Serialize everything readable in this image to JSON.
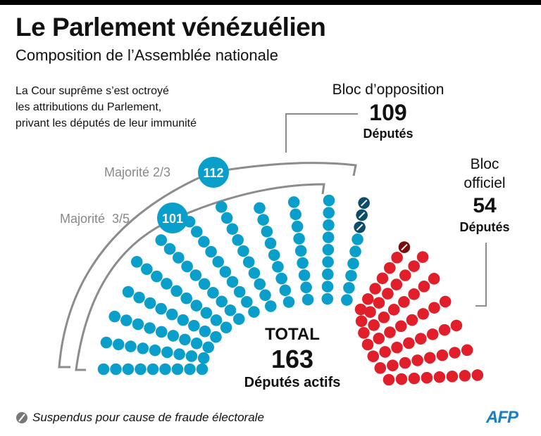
{
  "header": {
    "title": "Le Parlement vénézuélien",
    "subtitle": "Composition de l’Assemblée nationale",
    "description": [
      "La Cour suprême s’est octroyé",
      "les attributions du Parlement,",
      "privant les députés de leur immunité"
    ]
  },
  "opposition": {
    "label": "Bloc d’opposition",
    "count": "109",
    "unit": "Députés"
  },
  "official": {
    "label_line1": "Bloc",
    "label_line2": "officiel",
    "count": "54",
    "unit": "Députés"
  },
  "majorities": [
    {
      "label": "Majorité 2/3",
      "value": "112"
    },
    {
      "label": "Majorité  3/5",
      "value": "101"
    }
  ],
  "total": {
    "label": "TOTAL",
    "count": "163",
    "unit": "Députés actifs"
  },
  "legend": {
    "suspended": "Suspendus pour cause de fraude électorale"
  },
  "logo": "AFP",
  "colors": {
    "opposition": "#0a9fca",
    "opposition_suspended": "#0b4c6b",
    "official": "#e01f2a",
    "official_suspended": "#7a0d0d",
    "bracket": "#8c8c8c",
    "logo": "#1a7fc4"
  },
  "chart_data": {
    "type": "parliament",
    "title": "Le Parlement vénézuélien",
    "series": [
      {
        "name": "Bloc d’opposition",
        "active": 109,
        "suspended": 3
      },
      {
        "name": "Bloc officiel",
        "active": 54,
        "suspended": 1
      }
    ],
    "thresholds": [
      {
        "name": "Majorité 2/3",
        "value": 112
      },
      {
        "name": "Majorité 3/5",
        "value": 101
      }
    ],
    "total_active": 163
  }
}
